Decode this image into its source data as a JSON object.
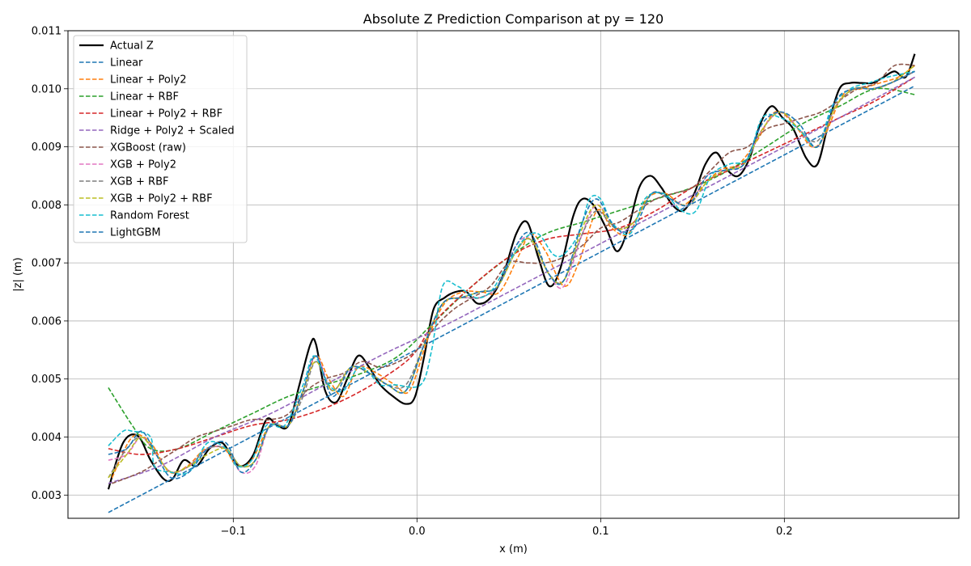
{
  "chart_data": {
    "type": "line",
    "title": "Absolute Z Prediction Comparison at py = 120",
    "xlabel": "x (m)",
    "ylabel": "|z| (m)",
    "xlim": [
      -0.19,
      0.295
    ],
    "ylim": [
      0.0026,
      0.011
    ],
    "xticks": [
      -0.1,
      0.0,
      0.1,
      0.2
    ],
    "xtick_labels": [
      "−0.1",
      "0.0",
      "0.1",
      "0.2"
    ],
    "yticks": [
      0.003,
      0.004,
      0.005,
      0.006,
      0.007,
      0.008,
      0.009,
      0.01,
      0.011
    ],
    "ytick_labels": [
      "0.003",
      "0.004",
      "0.005",
      "0.006",
      "0.007",
      "0.008",
      "0.009",
      "0.010",
      "0.011"
    ],
    "grid": true,
    "legend_position": "upper-left",
    "series": [
      {
        "name": "Actual Z",
        "color": "#000000",
        "dashed": false,
        "width": 2.2,
        "x": [
          -0.168,
          -0.16,
          -0.152,
          -0.145,
          -0.138,
          -0.133,
          -0.127,
          -0.12,
          -0.113,
          -0.106,
          -0.1,
          -0.095,
          -0.089,
          -0.082,
          -0.076,
          -0.07,
          -0.064,
          -0.058,
          -0.055,
          -0.05,
          -0.044,
          -0.038,
          -0.032,
          -0.026,
          -0.02,
          -0.013,
          -0.006,
          -0.001,
          0.004,
          0.009,
          0.015,
          0.021,
          0.027,
          0.033,
          0.04,
          0.047,
          0.054,
          0.06,
          0.066,
          0.072,
          0.078,
          0.085,
          0.09,
          0.096,
          0.103,
          0.109,
          0.115,
          0.121,
          0.127,
          0.133,
          0.139,
          0.145,
          0.151,
          0.157,
          0.163,
          0.169,
          0.175,
          0.181,
          0.187,
          0.193,
          0.199,
          0.205,
          0.212,
          0.218,
          0.224,
          0.23,
          0.236,
          0.242,
          0.248,
          0.254,
          0.26,
          0.266,
          0.271
        ],
        "y": [
          0.0031,
          0.0039,
          0.00402,
          0.0036,
          0.00328,
          0.00328,
          0.0036,
          0.0035,
          0.0038,
          0.0039,
          0.0036,
          0.0035,
          0.0037,
          0.0043,
          0.0042,
          0.0042,
          0.0049,
          0.0056,
          0.0056,
          0.0048,
          0.0046,
          0.005,
          0.0054,
          0.0052,
          0.0049,
          0.0047,
          0.00457,
          0.0047,
          0.0054,
          0.0062,
          0.0064,
          0.0065,
          0.0065,
          0.0063,
          0.0064,
          0.0068,
          0.0075,
          0.0077,
          0.0071,
          0.0066,
          0.0069,
          0.0078,
          0.0081,
          0.008,
          0.0076,
          0.0072,
          0.0076,
          0.0083,
          0.0085,
          0.0083,
          0.008,
          0.0079,
          0.0082,
          0.0087,
          0.0089,
          0.0086,
          0.0085,
          0.0088,
          0.0094,
          0.0097,
          0.0095,
          0.0093,
          0.0088,
          0.0087,
          0.0094,
          0.01,
          0.0101,
          0.0101,
          0.0101,
          0.0102,
          0.0103,
          0.0102,
          0.0106
        ]
      },
      {
        "name": "Linear",
        "color": "#1f77b4",
        "dashed": true,
        "width": 1.6,
        "x": [
          -0.168,
          0.271
        ],
        "y": [
          0.0027,
          0.01005
        ]
      },
      {
        "name": "Linear + Poly2",
        "color": "#ff7f0e",
        "dashed": true,
        "width": 1.6,
        "x": [
          -0.166,
          -0.155,
          -0.145,
          -0.135,
          -0.125,
          -0.115,
          -0.105,
          -0.098,
          -0.09,
          -0.08,
          -0.07,
          -0.062,
          -0.055,
          -0.048,
          -0.04,
          -0.032,
          -0.022,
          -0.012,
          -0.004,
          0.006,
          0.015,
          0.025,
          0.035,
          0.045,
          0.055,
          0.062,
          0.07,
          0.08,
          0.088,
          0.098,
          0.106,
          0.115,
          0.125,
          0.135,
          0.145,
          0.155,
          0.165,
          0.175,
          0.185,
          0.195,
          0.205,
          0.215,
          0.222,
          0.232,
          0.242,
          0.252,
          0.262,
          0.271
        ],
        "y": [
          0.0033,
          0.004,
          0.0039,
          0.0034,
          0.0035,
          0.0038,
          0.0038,
          0.0035,
          0.0036,
          0.0042,
          0.0042,
          0.0048,
          0.0054,
          0.005,
          0.0047,
          0.0052,
          0.0051,
          0.0049,
          0.0048,
          0.0057,
          0.0063,
          0.0065,
          0.0065,
          0.0065,
          0.0071,
          0.0075,
          0.0072,
          0.0066,
          0.007,
          0.0079,
          0.0076,
          0.0075,
          0.0081,
          0.0082,
          0.008,
          0.0083,
          0.0086,
          0.0087,
          0.0091,
          0.0096,
          0.0094,
          0.009,
          0.0092,
          0.0099,
          0.01,
          0.0101,
          0.0102,
          0.0104
        ]
      },
      {
        "name": "Linear + RBF",
        "color": "#2ca02c",
        "dashed": true,
        "width": 1.6,
        "x": [
          -0.168,
          -0.155,
          -0.145,
          -0.13,
          -0.11,
          -0.09,
          -0.07,
          -0.05,
          -0.03,
          -0.01,
          0.01,
          0.03,
          0.05,
          0.07,
          0.09,
          0.11,
          0.13,
          0.15,
          0.17,
          0.19,
          0.21,
          0.23,
          0.25,
          0.271
        ],
        "y": [
          0.00485,
          0.0042,
          0.0038,
          0.0038,
          0.0041,
          0.0044,
          0.0047,
          0.0049,
          0.0051,
          0.0054,
          0.006,
          0.0066,
          0.0071,
          0.0075,
          0.0077,
          0.0079,
          0.0081,
          0.0083,
          0.0086,
          0.009,
          0.0094,
          0.0097,
          0.01,
          0.0099
        ]
      },
      {
        "name": "Linear + Poly2 + RBF",
        "color": "#d62728",
        "dashed": true,
        "width": 1.6,
        "x": [
          -0.168,
          -0.15,
          -0.13,
          -0.11,
          -0.09,
          -0.07,
          -0.05,
          -0.03,
          -0.01,
          0.0,
          0.01,
          0.03,
          0.05,
          0.07,
          0.09,
          0.11,
          0.13,
          0.15,
          0.17,
          0.19,
          0.21,
          0.23,
          0.25,
          0.271
        ],
        "y": [
          0.0038,
          0.0037,
          0.0038,
          0.004,
          0.0042,
          0.0043,
          0.0045,
          0.0048,
          0.0052,
          0.0055,
          0.006,
          0.0066,
          0.0071,
          0.0074,
          0.0075,
          0.0076,
          0.0079,
          0.0083,
          0.0086,
          0.0089,
          0.0092,
          0.0095,
          0.0098,
          0.0102
        ]
      },
      {
        "name": "Ridge + Poly2 + Scaled",
        "color": "#9467bd",
        "dashed": true,
        "width": 1.6,
        "x": [
          -0.168,
          -0.14,
          -0.11,
          -0.08,
          -0.05,
          -0.02,
          0.0,
          0.02,
          0.05,
          0.08,
          0.11,
          0.14,
          0.17,
          0.2,
          0.23,
          0.271
        ],
        "y": [
          0.0032,
          0.0035,
          0.004,
          0.0044,
          0.0049,
          0.0054,
          0.0057,
          0.006,
          0.0065,
          0.007,
          0.0075,
          0.008,
          0.0085,
          0.009,
          0.0095,
          0.0102
        ]
      },
      {
        "name": "XGBoost (raw)",
        "color": "#8c564b",
        "dashed": true,
        "width": 1.6,
        "x": [
          -0.166,
          -0.15,
          -0.14,
          -0.13,
          -0.12,
          -0.11,
          -0.1,
          -0.09,
          -0.08,
          -0.07,
          -0.06,
          -0.05,
          -0.04,
          -0.03,
          -0.02,
          -0.01,
          0.0,
          0.01,
          0.02,
          0.03,
          0.04,
          0.05,
          0.06,
          0.07,
          0.08,
          0.09,
          0.1,
          0.11,
          0.12,
          0.13,
          0.14,
          0.15,
          0.16,
          0.17,
          0.18,
          0.19,
          0.2,
          0.21,
          0.22,
          0.23,
          0.24,
          0.25,
          0.26,
          0.271
        ],
        "y": [
          0.0032,
          0.0034,
          0.0036,
          0.0038,
          0.004,
          0.0041,
          0.0042,
          0.0043,
          0.0043,
          0.0044,
          0.0048,
          0.005,
          0.0051,
          0.0053,
          0.0052,
          0.0053,
          0.0055,
          0.0059,
          0.0062,
          0.0064,
          0.0066,
          0.007,
          0.007,
          0.007,
          0.0071,
          0.0073,
          0.0076,
          0.0077,
          0.0079,
          0.0081,
          0.0082,
          0.0083,
          0.0086,
          0.0089,
          0.009,
          0.0093,
          0.0094,
          0.0095,
          0.0096,
          0.0098,
          0.01,
          0.0101,
          0.0104,
          0.0104
        ]
      },
      {
        "name": "XGB + Poly2",
        "color": "#e377c2",
        "dashed": true,
        "width": 1.6,
        "x": [
          -0.168,
          -0.158,
          -0.15,
          -0.142,
          -0.134,
          -0.124,
          -0.114,
          -0.104,
          -0.096,
          -0.088,
          -0.08,
          -0.07,
          -0.062,
          -0.055,
          -0.046,
          -0.036,
          -0.026,
          -0.016,
          -0.006,
          0.004,
          0.014,
          0.024,
          0.034,
          0.044,
          0.054,
          0.062,
          0.072,
          0.08,
          0.09,
          0.098,
          0.108,
          0.118,
          0.128,
          0.138,
          0.148,
          0.158,
          0.168,
          0.178,
          0.188,
          0.198,
          0.208,
          0.218,
          0.228,
          0.238,
          0.248,
          0.258,
          0.271
        ],
        "y": [
          0.0036,
          0.0037,
          0.004,
          0.0037,
          0.0034,
          0.0035,
          0.0038,
          0.0038,
          0.0034,
          0.0035,
          0.0042,
          0.0042,
          0.0048,
          0.0054,
          0.0048,
          0.0052,
          0.0051,
          0.0049,
          0.0048,
          0.0056,
          0.0063,
          0.0064,
          0.0064,
          0.0066,
          0.0073,
          0.0074,
          0.0068,
          0.0066,
          0.0075,
          0.008,
          0.0076,
          0.0077,
          0.0082,
          0.0081,
          0.008,
          0.0085,
          0.0086,
          0.0087,
          0.0093,
          0.0096,
          0.0093,
          0.009,
          0.0097,
          0.01,
          0.01,
          0.0101,
          0.0103
        ]
      },
      {
        "name": "XGB + RBF",
        "color": "#7f7f7f",
        "dashed": true,
        "width": 1.6,
        "x": [
          -0.168,
          -0.158,
          -0.15,
          -0.142,
          -0.134,
          -0.124,
          -0.114,
          -0.104,
          -0.096,
          -0.088,
          -0.08,
          -0.07,
          -0.062,
          -0.055,
          -0.046,
          -0.036,
          -0.026,
          -0.016,
          -0.006,
          0.004,
          0.014,
          0.024,
          0.034,
          0.044,
          0.054,
          0.062,
          0.072,
          0.08,
          0.09,
          0.098,
          0.108,
          0.118,
          0.128,
          0.138,
          0.148,
          0.158,
          0.168,
          0.178,
          0.188,
          0.198,
          0.208,
          0.218,
          0.228,
          0.238,
          0.248,
          0.258,
          0.271
        ],
        "y": [
          0.0033,
          0.0038,
          0.004,
          0.0037,
          0.0034,
          0.0035,
          0.0038,
          0.0038,
          0.0035,
          0.0036,
          0.0042,
          0.0042,
          0.0047,
          0.0053,
          0.0048,
          0.0052,
          0.0051,
          0.0049,
          0.0049,
          0.0056,
          0.0063,
          0.0064,
          0.0064,
          0.0066,
          0.0072,
          0.0074,
          0.0068,
          0.0067,
          0.0075,
          0.0079,
          0.0076,
          0.0077,
          0.0082,
          0.0081,
          0.008,
          0.0084,
          0.0086,
          0.0087,
          0.0093,
          0.0096,
          0.0093,
          0.0091,
          0.0097,
          0.01,
          0.01,
          0.0101,
          0.0103
        ]
      },
      {
        "name": "XGB + Poly2 + RBF",
        "color": "#bcbd22",
        "dashed": true,
        "width": 1.6,
        "x": [
          -0.168,
          -0.158,
          -0.15,
          -0.142,
          -0.134,
          -0.124,
          -0.114,
          -0.104,
          -0.096,
          -0.088,
          -0.08,
          -0.07,
          -0.062,
          -0.055,
          -0.046,
          -0.036,
          -0.026,
          -0.016,
          -0.006,
          0.004,
          0.014,
          0.024,
          0.034,
          0.044,
          0.054,
          0.062,
          0.072,
          0.08,
          0.09,
          0.098,
          0.108,
          0.118,
          0.128,
          0.138,
          0.148,
          0.158,
          0.168,
          0.178,
          0.188,
          0.198,
          0.208,
          0.218,
          0.228,
          0.238,
          0.248,
          0.258,
          0.271
        ],
        "y": [
          0.0033,
          0.0037,
          0.004,
          0.0037,
          0.0034,
          0.0035,
          0.0037,
          0.0038,
          0.0035,
          0.0036,
          0.0042,
          0.0042,
          0.0048,
          0.0053,
          0.0048,
          0.0052,
          0.0051,
          0.0049,
          0.0048,
          0.0056,
          0.0063,
          0.0064,
          0.0065,
          0.0066,
          0.0072,
          0.0074,
          0.0068,
          0.0067,
          0.0076,
          0.008,
          0.0076,
          0.0077,
          0.0082,
          0.0081,
          0.008,
          0.0084,
          0.0086,
          0.0087,
          0.0093,
          0.0096,
          0.0093,
          0.009,
          0.0097,
          0.01,
          0.01,
          0.0101,
          0.0104
        ]
      },
      {
        "name": "Random Forest",
        "color": "#17becf",
        "dashed": true,
        "width": 1.6,
        "x": [
          -0.168,
          -0.16,
          -0.155,
          -0.145,
          -0.143,
          -0.135,
          -0.124,
          -0.114,
          -0.104,
          -0.098,
          -0.09,
          -0.082,
          -0.072,
          -0.062,
          -0.056,
          -0.048,
          -0.04,
          -0.032,
          -0.026,
          -0.02,
          -0.012,
          0.002,
          0.008,
          0.014,
          0.022,
          0.032,
          0.04,
          0.048,
          0.058,
          0.066,
          0.074,
          0.08,
          0.088,
          0.094,
          0.1,
          0.106,
          0.116,
          0.124,
          0.134,
          0.144,
          0.152,
          0.16,
          0.17,
          0.18,
          0.188,
          0.198,
          0.208,
          0.218,
          0.226,
          0.236,
          0.246,
          0.256,
          0.271
        ],
        "y": [
          0.00385,
          0.0041,
          0.0041,
          0.004,
          0.0035,
          0.0034,
          0.0034,
          0.0039,
          0.0038,
          0.0035,
          0.0036,
          0.0042,
          0.0042,
          0.0049,
          0.0054,
          0.0049,
          0.0048,
          0.0052,
          0.0051,
          0.0049,
          0.0049,
          0.0049,
          0.0055,
          0.0066,
          0.0066,
          0.0064,
          0.0065,
          0.0069,
          0.0074,
          0.0075,
          0.00715,
          0.00715,
          0.0075,
          0.0081,
          0.0081,
          0.0077,
          0.0075,
          0.0081,
          0.0082,
          0.0079,
          0.0079,
          0.0085,
          0.0087,
          0.0088,
          0.0095,
          0.0095,
          0.0093,
          0.009,
          0.0097,
          0.01,
          0.0101,
          0.0102,
          0.0103
        ]
      },
      {
        "name": "LightGBM",
        "color": "#1f77b4",
        "dashed": true,
        "width": 1.6,
        "x": [
          -0.168,
          -0.158,
          -0.15,
          -0.142,
          -0.134,
          -0.124,
          -0.114,
          -0.104,
          -0.096,
          -0.088,
          -0.08,
          -0.07,
          -0.062,
          -0.055,
          -0.046,
          -0.036,
          -0.026,
          -0.016,
          -0.006,
          0.004,
          0.014,
          0.024,
          0.034,
          0.044,
          0.054,
          0.062,
          0.072,
          0.08,
          0.09,
          0.098,
          0.108,
          0.118,
          0.128,
          0.138,
          0.148,
          0.158,
          0.168,
          0.178,
          0.188,
          0.198,
          0.208,
          0.218,
          0.228,
          0.238,
          0.248,
          0.258,
          0.271
        ],
        "y": [
          0.0037,
          0.0038,
          0.0041,
          0.0037,
          0.0033,
          0.0034,
          0.0038,
          0.0039,
          0.0034,
          0.0036,
          0.0042,
          0.0042,
          0.0048,
          0.0054,
          0.0047,
          0.0052,
          0.0051,
          0.0049,
          0.0048,
          0.0056,
          0.0063,
          0.0064,
          0.0065,
          0.0066,
          0.0073,
          0.0075,
          0.0068,
          0.0067,
          0.0077,
          0.0081,
          0.0076,
          0.0076,
          0.0082,
          0.0081,
          0.008,
          0.0085,
          0.0086,
          0.0087,
          0.0094,
          0.0096,
          0.0094,
          0.009,
          0.0098,
          0.01,
          0.01,
          0.0101,
          0.0103
        ]
      }
    ]
  }
}
